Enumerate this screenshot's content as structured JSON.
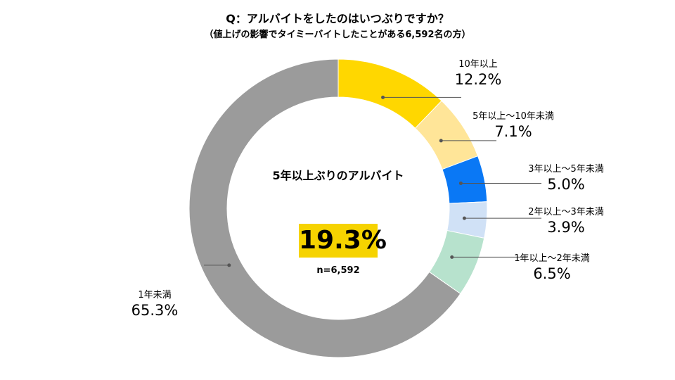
{
  "title": "Q：アルバイトをしたのはいつぶりですか？",
  "subtitle": "（値上げの影響でタイミーバイトしたことがある6,592名の方）",
  "center": {
    "heading": "5年以上ぶりのアルバイト",
    "value": "19.3%",
    "n": "n=6,592"
  },
  "chart_data": {
    "type": "pie",
    "donut": true,
    "title": "Q：アルバイトをしたのはいつぶりですか？",
    "subtitle": "（値上げの影響でタイミーバイトしたことがある6,592名の方）",
    "slices": [
      {
        "label": "10年以上",
        "value": 12.2,
        "display": "12.2%",
        "color": "#ffd700"
      },
      {
        "label": "5年以上～10年未満",
        "value": 7.1,
        "display": "7.1%",
        "color": "#ffe598"
      },
      {
        "label": "3年以上～5年未満",
        "value": 5.0,
        "display": "5.0%",
        "color": "#0a78f5"
      },
      {
        "label": "2年以上～3年未満",
        "value": 3.9,
        "display": "3.9%",
        "color": "#d0e1f6"
      },
      {
        "label": "1年以上～2年未満",
        "value": 6.5,
        "display": "6.5%",
        "color": "#b7e2cd"
      },
      {
        "label": "1年未満",
        "value": 65.3,
        "display": "65.3%",
        "color": "#9b9b9b"
      }
    ]
  }
}
